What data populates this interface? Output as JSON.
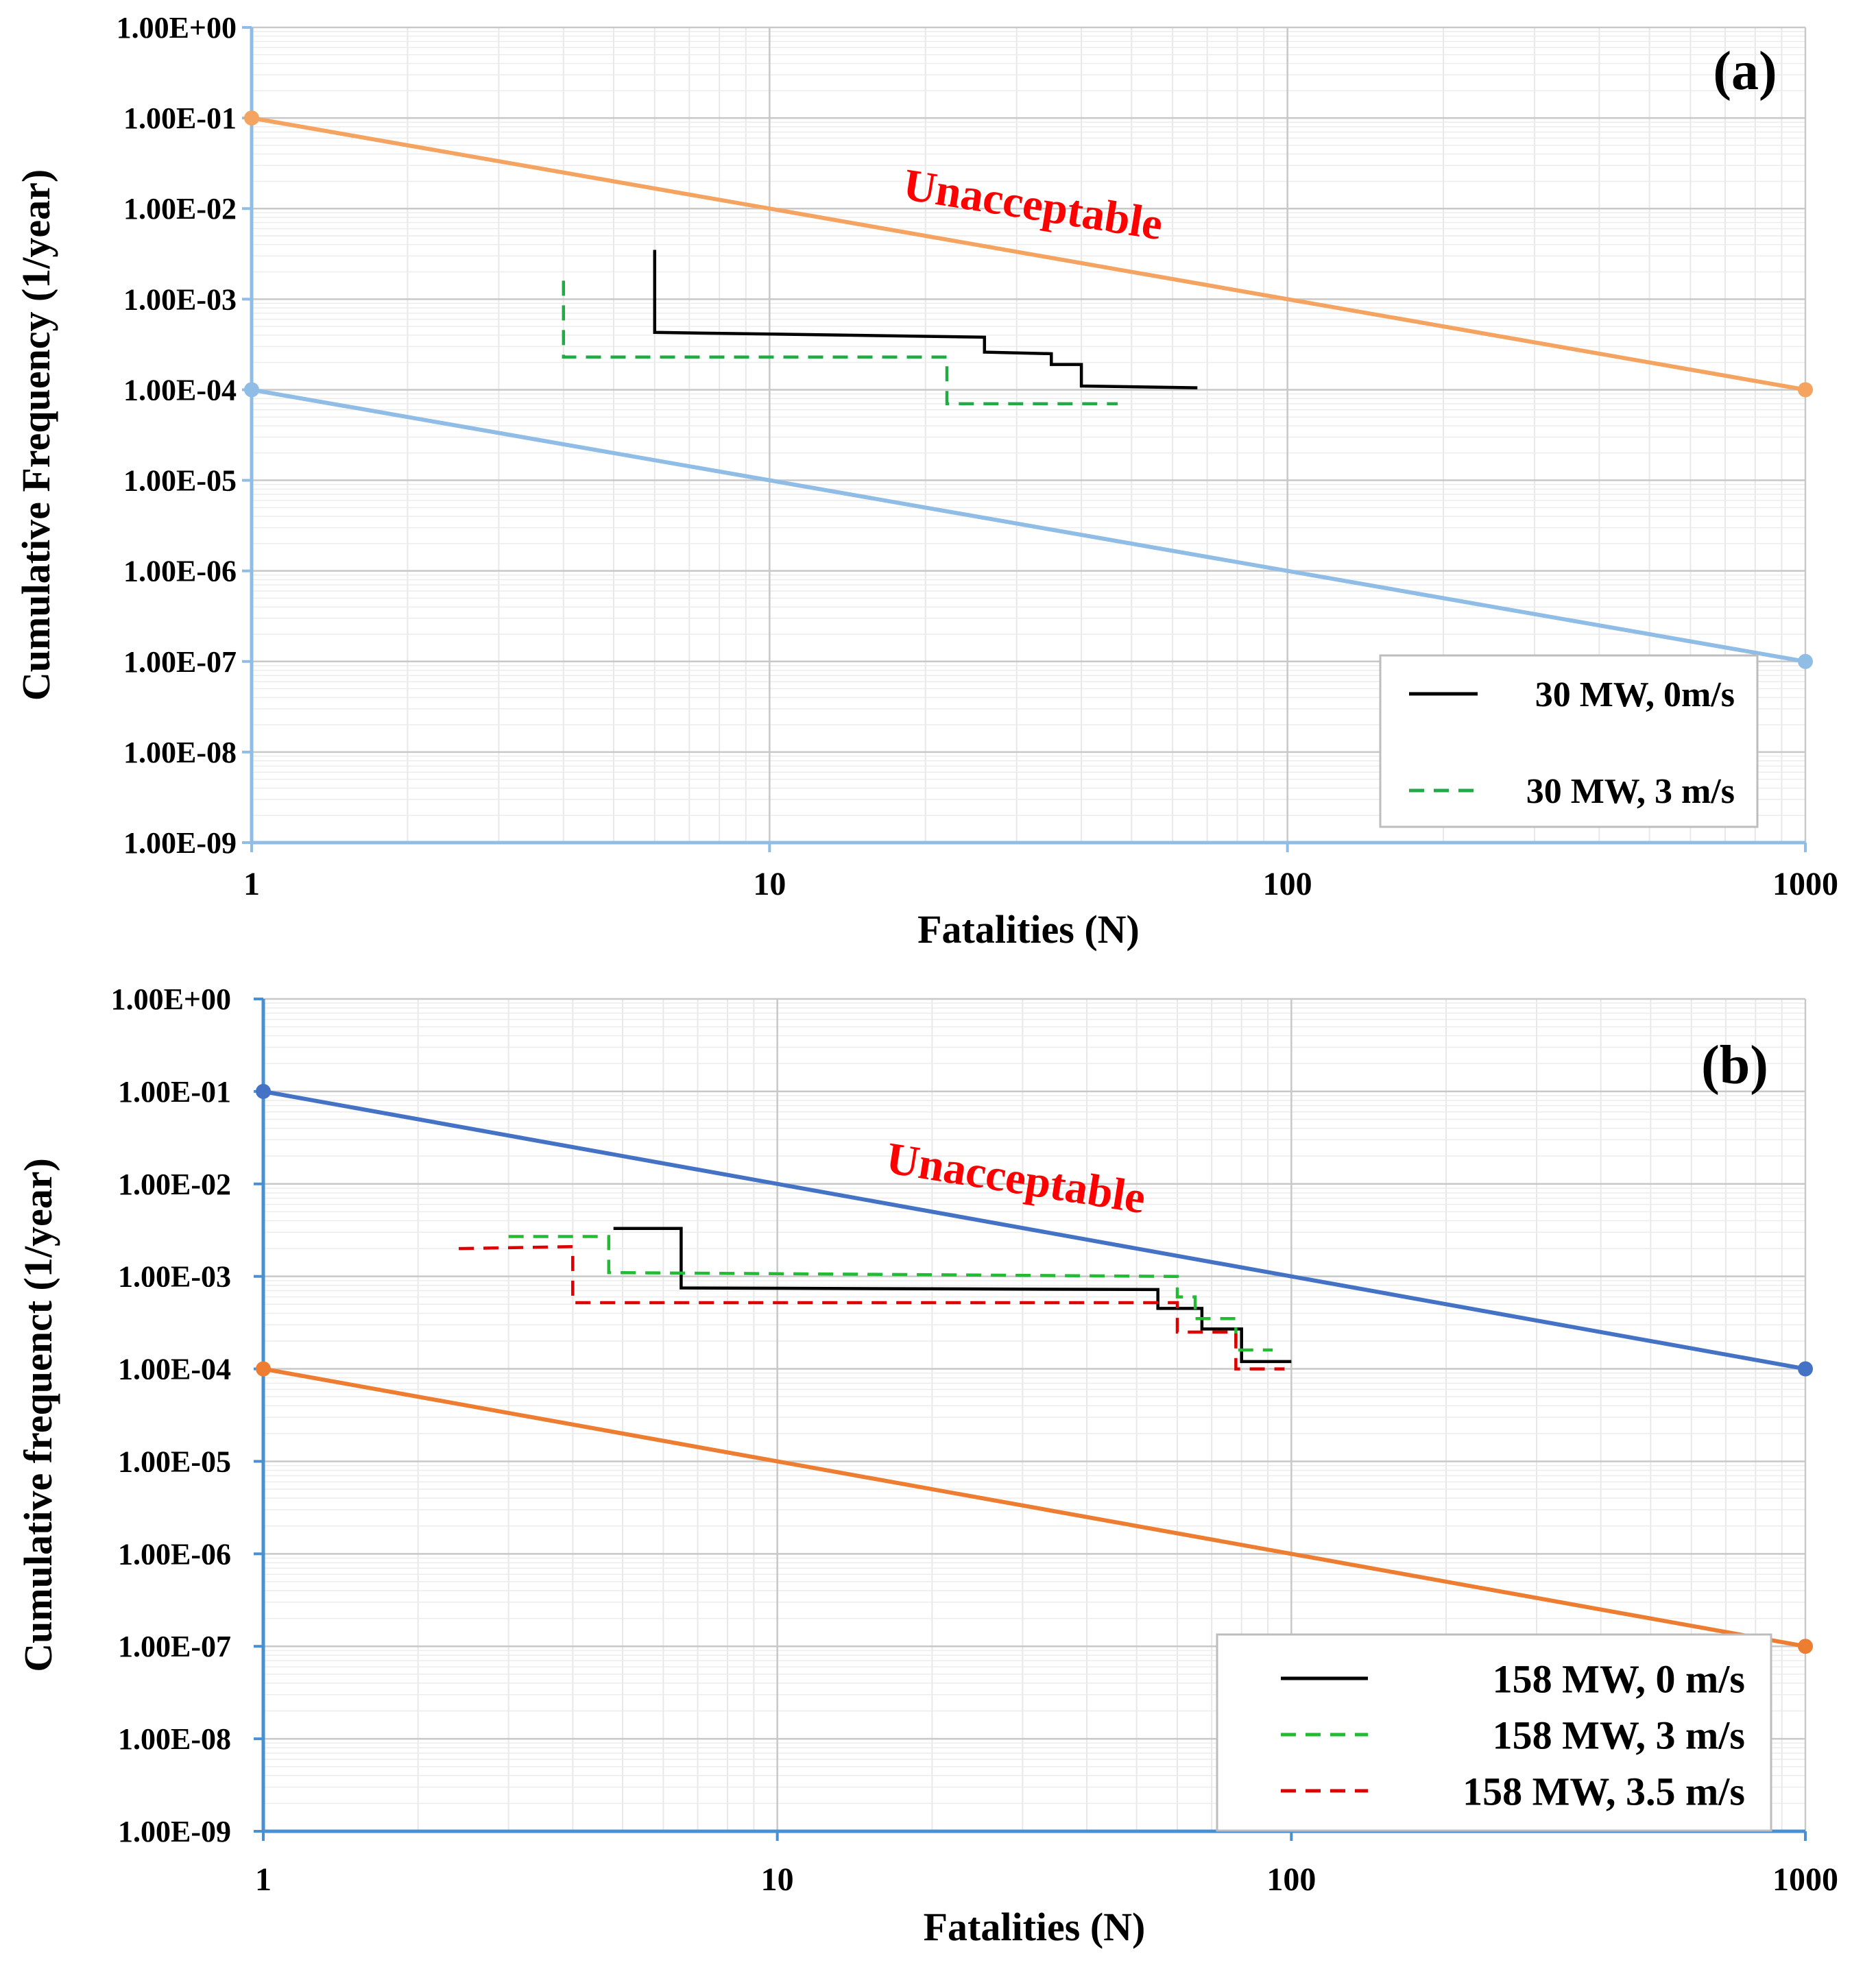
{
  "chart_data": [
    {
      "type": "line",
      "panel_label": "(a)",
      "xlabel": "Fatalities (N)",
      "ylabel": "Cumulative Frequency (1/year)",
      "x_scale": "log",
      "y_scale": "log",
      "xlim": [
        1,
        1000
      ],
      "ylim": [
        1e-09,
        1
      ],
      "x_ticks": [
        "1",
        "10",
        "100",
        "1000"
      ],
      "y_ticks": [
        "1.00E+00",
        "1.00E-01",
        "1.00E-02",
        "1.00E-03",
        "1.00E-04",
        "1.00E-05",
        "1.00E-06",
        "1.00E-07",
        "1.00E-08",
        "1.00E-09"
      ],
      "region_label": "Unacceptable",
      "criteria_lines": [
        {
          "name": "upper",
          "color": "#f4a460",
          "points": [
            [
              1,
              0.1
            ],
            [
              1000,
              0.0001
            ]
          ]
        },
        {
          "name": "lower",
          "color": "#8fbde6",
          "points": [
            [
              1,
              0.0001
            ],
            [
              1000,
              1e-07
            ]
          ]
        }
      ],
      "series": [
        {
          "name": "30 MW, 0m/s",
          "color": "#000000",
          "dash": "solid",
          "points": [
            [
              6,
              0.0035
            ],
            [
              6,
              0.00043
            ],
            [
              26,
              0.00038
            ],
            [
              26,
              0.00026
            ],
            [
              35,
              0.00025
            ],
            [
              35,
              0.00019
            ],
            [
              40,
              0.00019
            ],
            [
              40,
              0.00011
            ],
            [
              67,
              0.000105
            ]
          ]
        },
        {
          "name": "30 MW, 3 m/s",
          "color": "#22aa44",
          "dash": "dashed",
          "points": [
            [
              4,
              0.0016
            ],
            [
              4,
              0.00023
            ],
            [
              22,
              0.00023
            ],
            [
              22,
              7e-05
            ],
            [
              47,
              7e-05
            ]
          ]
        }
      ],
      "legend": {
        "location": "bottom-right",
        "entries": [
          "30 MW, 0m/s",
          "30 MW, 3 m/s"
        ]
      }
    },
    {
      "type": "line",
      "panel_label": "(b)",
      "xlabel": "Fatalities (N)",
      "ylabel": "Cumulative frequenct (1/year)",
      "x_scale": "log",
      "y_scale": "log",
      "xlim": [
        1,
        1000
      ],
      "ylim": [
        1e-09,
        1
      ],
      "x_ticks": [
        "1",
        "10",
        "100",
        "1000"
      ],
      "y_ticks": [
        "1.00E+00",
        "1.00E-01",
        "1.00E-02",
        "1.00E-03",
        "1.00E-04",
        "1.00E-05",
        "1.00E-06",
        "1.00E-07",
        "1.00E-08",
        "1.00E-09"
      ],
      "region_label": "Unacceptable",
      "criteria_lines": [
        {
          "name": "upper",
          "color": "#4472c4",
          "points": [
            [
              1,
              0.1
            ],
            [
              1000,
              0.0001
            ]
          ]
        },
        {
          "name": "lower",
          "color": "#ed7d31",
          "points": [
            [
              1,
              0.0001
            ],
            [
              1000,
              1e-07
            ]
          ]
        }
      ],
      "series": [
        {
          "name": "158 MW, 0 m/s",
          "color": "#000000",
          "dash": "solid",
          "points": [
            [
              4.8,
              0.0033
            ],
            [
              6.5,
              0.0033
            ],
            [
              6.5,
              0.00075
            ],
            [
              55,
              0.00072
            ],
            [
              55,
              0.00045
            ],
            [
              67,
              0.00045
            ],
            [
              67,
              0.00027
            ],
            [
              80,
              0.00027
            ],
            [
              80,
              0.00012
            ],
            [
              100,
              0.00012
            ]
          ]
        },
        {
          "name": "158 MW, 3 m/s",
          "color": "#22bb33",
          "dash": "dashed",
          "points": [
            [
              3,
              0.0027
            ],
            [
              4.7,
              0.0027
            ],
            [
              4.7,
              0.0011
            ],
            [
              60,
              0.001
            ],
            [
              60,
              0.0006
            ],
            [
              65,
              0.0006
            ],
            [
              65,
              0.00035
            ],
            [
              78,
              0.00035
            ],
            [
              78,
              0.00016
            ],
            [
              92,
              0.00016
            ]
          ]
        },
        {
          "name": "158 MW, 3.5 m/s",
          "color": "#dd0000",
          "dash": "dashed",
          "points": [
            [
              2.4,
              0.002
            ],
            [
              4,
              0.0021
            ],
            [
              4,
              0.00052
            ],
            [
              60,
              0.00052
            ],
            [
              60,
              0.00025
            ],
            [
              78,
              0.00025
            ],
            [
              78,
              0.0001
            ],
            [
              97,
              0.0001
            ]
          ]
        }
      ],
      "legend": {
        "location": "bottom-right",
        "entries": [
          "158 MW, 0 m/s",
          "158 MW, 3 m/s",
          "158 MW, 3.5 m/s"
        ]
      }
    }
  ]
}
